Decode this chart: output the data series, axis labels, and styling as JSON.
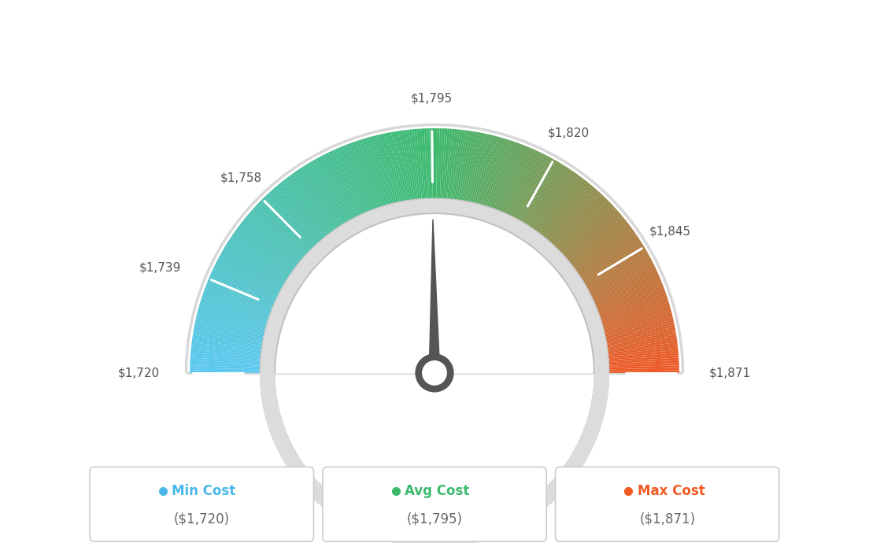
{
  "min_val": 1720,
  "max_val": 1871,
  "avg_val": 1795,
  "tick_labels": [
    "$1,720",
    "$1,739",
    "$1,758",
    "$1,795",
    "$1,820",
    "$1,845",
    "$1,871"
  ],
  "tick_values": [
    1720,
    1739,
    1758,
    1795,
    1820,
    1845,
    1871
  ],
  "legend": [
    {
      "label": "Min Cost",
      "value": "($1,720)",
      "dot_color": "#4ab8e8"
    },
    {
      "label": "Avg Cost",
      "value": "($1,795)",
      "dot_color": "#3cb96d"
    },
    {
      "label": "Max Cost",
      "value": "($1,871)",
      "dot_color": "#f05a22"
    }
  ],
  "background_color": "#ffffff",
  "outer_r": 0.82,
  "inner_r": 0.58,
  "needle_value": 1795,
  "blue": [
    91,
    200,
    240
  ],
  "green": [
    61,
    186,
    110
  ],
  "orange": [
    240,
    90,
    40
  ],
  "needle_color": "#555555",
  "inner_band_color": "#d5d5d5",
  "outer_border_color": "#e0e0e0"
}
